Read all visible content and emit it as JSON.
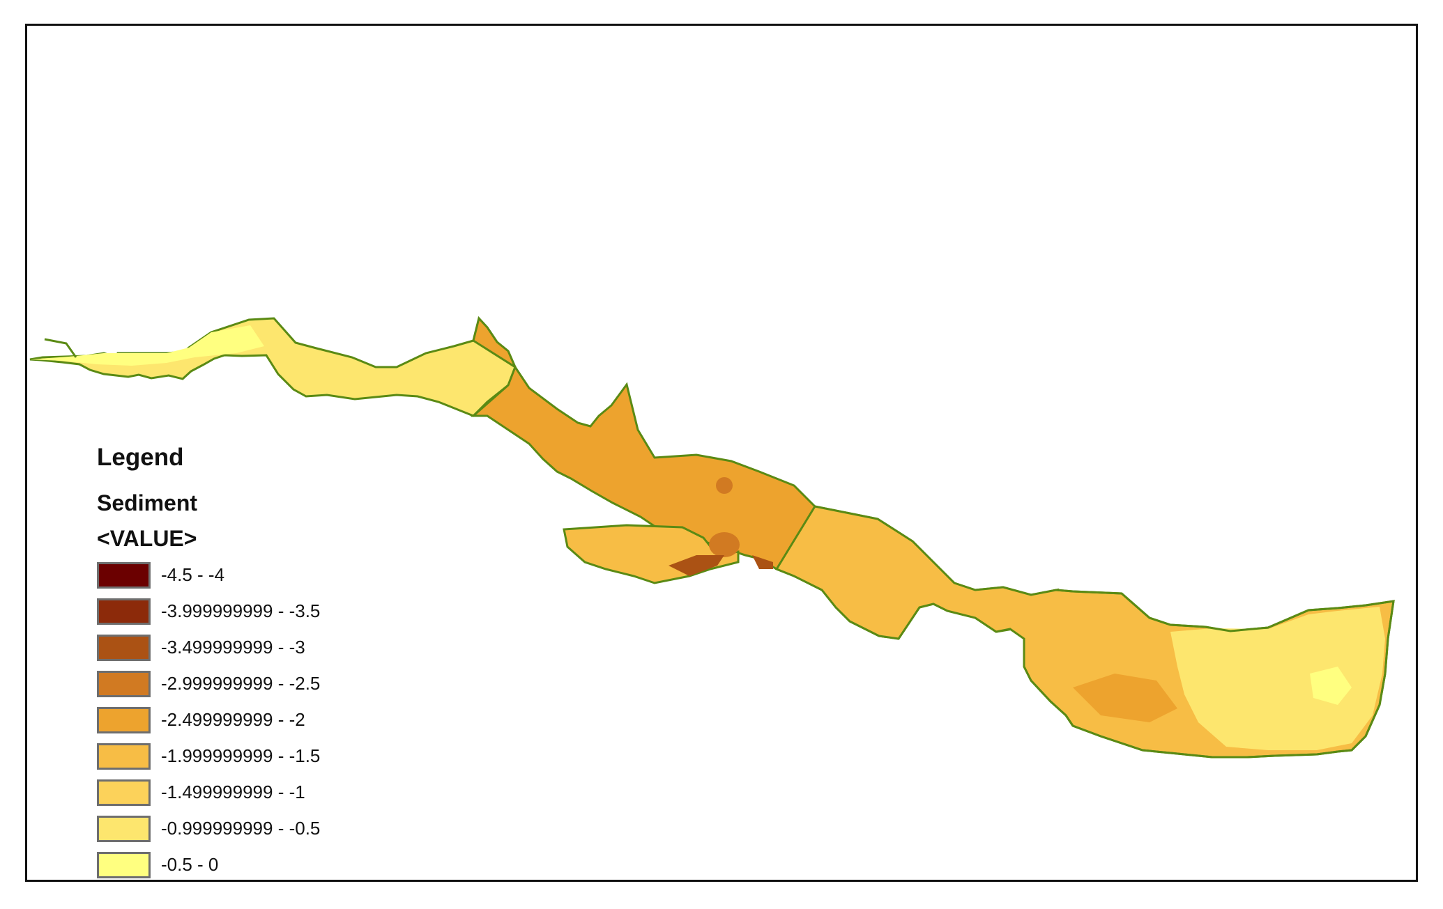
{
  "legend": {
    "title": "Legend",
    "layer_name": "Sediment",
    "field_name": "<VALUE>",
    "classes": [
      {
        "label": "-4.5 - -4",
        "color": "#6b0000"
      },
      {
        "label": "-3.999999999 - -3.5",
        "color": "#8c2a0a"
      },
      {
        "label": "-3.499999999 - -3",
        "color": "#ab5214"
      },
      {
        "label": "-2.999999999 - -2.5",
        "color": "#d17a22"
      },
      {
        "label": "-2.499999999 - -2",
        "color": "#eda32e"
      },
      {
        "label": "-1.999999999 - -1.5",
        "color": "#f7bd45"
      },
      {
        "label": "-1.499999999 - -1",
        "color": "#fcd25a"
      },
      {
        "label": "-0.999999999 - -0.5",
        "color": "#fde66e"
      },
      {
        "label": "-0.5 - 0",
        "color": "#ffff80"
      }
    ]
  },
  "colors": {
    "channel_outline": "#5a8a14",
    "frame_border": "#111111"
  }
}
